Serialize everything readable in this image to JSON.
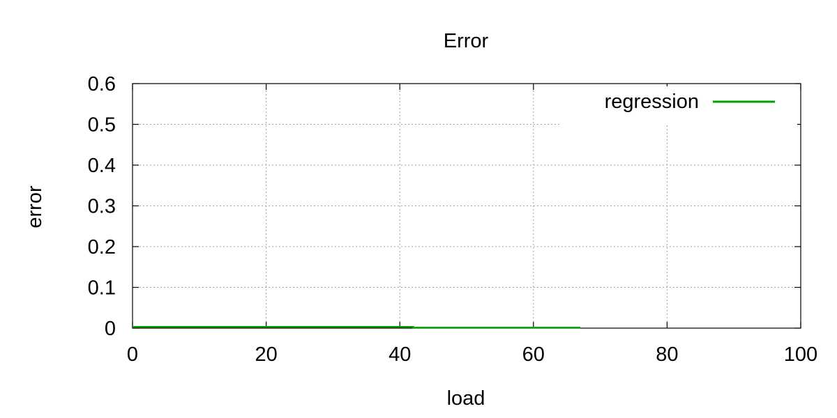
{
  "chart_data": {
    "type": "line",
    "title": "Error",
    "xlabel": "load",
    "ylabel": "error",
    "xlim": [
      0,
      100
    ],
    "ylim": [
      0,
      0.6
    ],
    "x_ticks": [
      0,
      20,
      40,
      60,
      80,
      100
    ],
    "y_ticks": [
      0,
      0.1,
      0.2,
      0.3,
      0.4,
      0.5,
      0.6
    ],
    "x_tick_labels": [
      "0",
      "20",
      "40",
      "60",
      "80",
      "100"
    ],
    "y_tick_labels": [
      "0",
      "0.1",
      "0.2",
      "0.3",
      "0.4",
      "0.5",
      "0.6"
    ],
    "grid": true,
    "legend_position": "top-right",
    "series": [
      {
        "name": "regression",
        "color": "#00a000",
        "x": [
          0,
          42,
          42,
          67
        ],
        "y": [
          0.003,
          0.003,
          0.001,
          0.001
        ]
      }
    ]
  }
}
